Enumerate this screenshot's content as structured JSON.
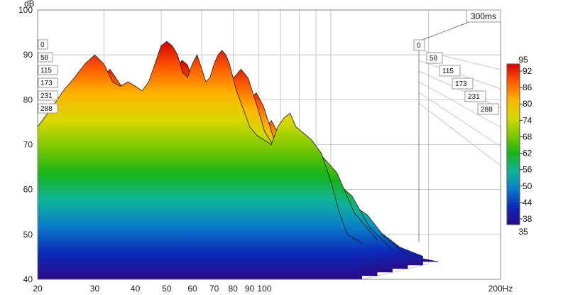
{
  "chart_data": {
    "type": "area",
    "subtype": "waterfall-3d",
    "title": "",
    "ylabel": "dB",
    "xlabel": "",
    "x_scale": "log",
    "xlim": [
      20,
      200
    ],
    "ylim": [
      40,
      100
    ],
    "x_ticks": [
      "20",
      "30",
      "40",
      "50",
      "60",
      "70",
      "80",
      "90",
      "100",
      "200Hz"
    ],
    "y_ticks": [
      "40",
      "50",
      "60",
      "70",
      "80",
      "90",
      "100"
    ],
    "time_unit": "ms",
    "time_max_label": "300ms",
    "time_slices_left": [
      "0",
      "58",
      "115",
      "173",
      "231",
      "288"
    ],
    "time_slices_right": [
      "0",
      "58",
      "115",
      "173",
      "231",
      "288"
    ],
    "colorbar": {
      "min_label": "35",
      "max_label": "95",
      "ticks": [
        "92",
        "86",
        "80",
        "74",
        "68",
        "62",
        "56",
        "50",
        "44",
        "38"
      ],
      "colors": [
        "#d40000",
        "#ff5a00",
        "#ffb400",
        "#d8d800",
        "#7ec800",
        "#18b418",
        "#10b49a",
        "#0a7cc8",
        "#0a2ab8",
        "#2a0a8a"
      ]
    },
    "series": [
      {
        "time_ms": 0,
        "x": [
          20,
          22,
          24,
          26,
          28,
          30,
          32,
          34,
          36,
          38,
          40,
          42,
          44,
          46,
          48,
          50,
          52,
          54,
          56,
          58,
          60,
          62,
          64,
          66,
          68,
          70,
          72,
          74,
          76,
          78,
          80,
          82,
          84,
          86,
          88,
          90,
          95,
          100,
          105,
          110,
          115,
          120,
          125,
          130,
          140,
          150,
          160,
          170,
          180,
          200
        ],
        "y": [
          74,
          78,
          82,
          85,
          88,
          90,
          88,
          84,
          83,
          84,
          83,
          82,
          84,
          88,
          92,
          93,
          92,
          90,
          86,
          85,
          88,
          90,
          87,
          84,
          85,
          88,
          90,
          91,
          90,
          88,
          85,
          82,
          80,
          78,
          76,
          74,
          72,
          71,
          70,
          74,
          76,
          77,
          74,
          73,
          71,
          68,
          62,
          55,
          50,
          48
        ]
      },
      {
        "time_ms": 58,
        "x": [
          20,
          24,
          28,
          30,
          32,
          36,
          40,
          44,
          48,
          50,
          52,
          56,
          60,
          64,
          68,
          72,
          76,
          80,
          85,
          90,
          100,
          110,
          120,
          130,
          150,
          170,
          200
        ],
        "y": [
          68,
          75,
          84,
          86,
          83,
          78,
          76,
          79,
          86,
          88,
          87,
          80,
          82,
          84,
          80,
          84,
          86,
          84,
          78,
          72,
          67,
          70,
          71,
          68,
          63,
          54,
          48
        ]
      },
      {
        "time_ms": 115,
        "x": [
          20,
          24,
          28,
          30,
          32,
          36,
          40,
          44,
          48,
          50,
          52,
          56,
          60,
          64,
          68,
          72,
          76,
          80,
          85,
          90,
          100,
          110,
          120,
          130,
          150,
          170,
          200
        ],
        "y": [
          63,
          70,
          80,
          82,
          78,
          72,
          70,
          73,
          80,
          82,
          80,
          73,
          76,
          78,
          73,
          78,
          80,
          77,
          71,
          66,
          61,
          64,
          65,
          61,
          57,
          50,
          45
        ]
      },
      {
        "time_ms": 173,
        "x": [
          20,
          24,
          28,
          30,
          32,
          36,
          40,
          44,
          48,
          50,
          52,
          56,
          60,
          64,
          68,
          72,
          76,
          80,
          85,
          90,
          100,
          110,
          120,
          130,
          150,
          170,
          200
        ],
        "y": [
          58,
          64,
          74,
          77,
          72,
          66,
          63,
          66,
          74,
          76,
          73,
          66,
          70,
          71,
          66,
          71,
          73,
          70,
          64,
          60,
          56,
          58,
          58,
          55,
          52,
          47,
          43
        ]
      },
      {
        "time_ms": 231,
        "x": [
          20,
          24,
          28,
          30,
          32,
          36,
          40,
          44,
          48,
          50,
          52,
          56,
          60,
          64,
          68,
          72,
          76,
          80,
          85,
          90,
          100,
          110,
          120,
          130,
          150,
          170,
          200
        ],
        "y": [
          53,
          58,
          68,
          71,
          66,
          60,
          56,
          59,
          67,
          69,
          66,
          59,
          63,
          64,
          59,
          64,
          65,
          62,
          57,
          54,
          50,
          52,
          52,
          49,
          47,
          44,
          42
        ]
      },
      {
        "time_ms": 288,
        "x": [
          20,
          24,
          28,
          30,
          32,
          36,
          40,
          44,
          48,
          50,
          52,
          56,
          60,
          64,
          68,
          72,
          76,
          80,
          85,
          90,
          100,
          110,
          120,
          130,
          150,
          170,
          200
        ],
        "y": [
          49,
          53,
          62,
          65,
          60,
          54,
          50,
          53,
          60,
          62,
          59,
          52,
          56,
          57,
          52,
          57,
          58,
          55,
          51,
          48,
          45,
          46,
          46,
          44,
          43,
          41,
          40
        ]
      }
    ]
  }
}
